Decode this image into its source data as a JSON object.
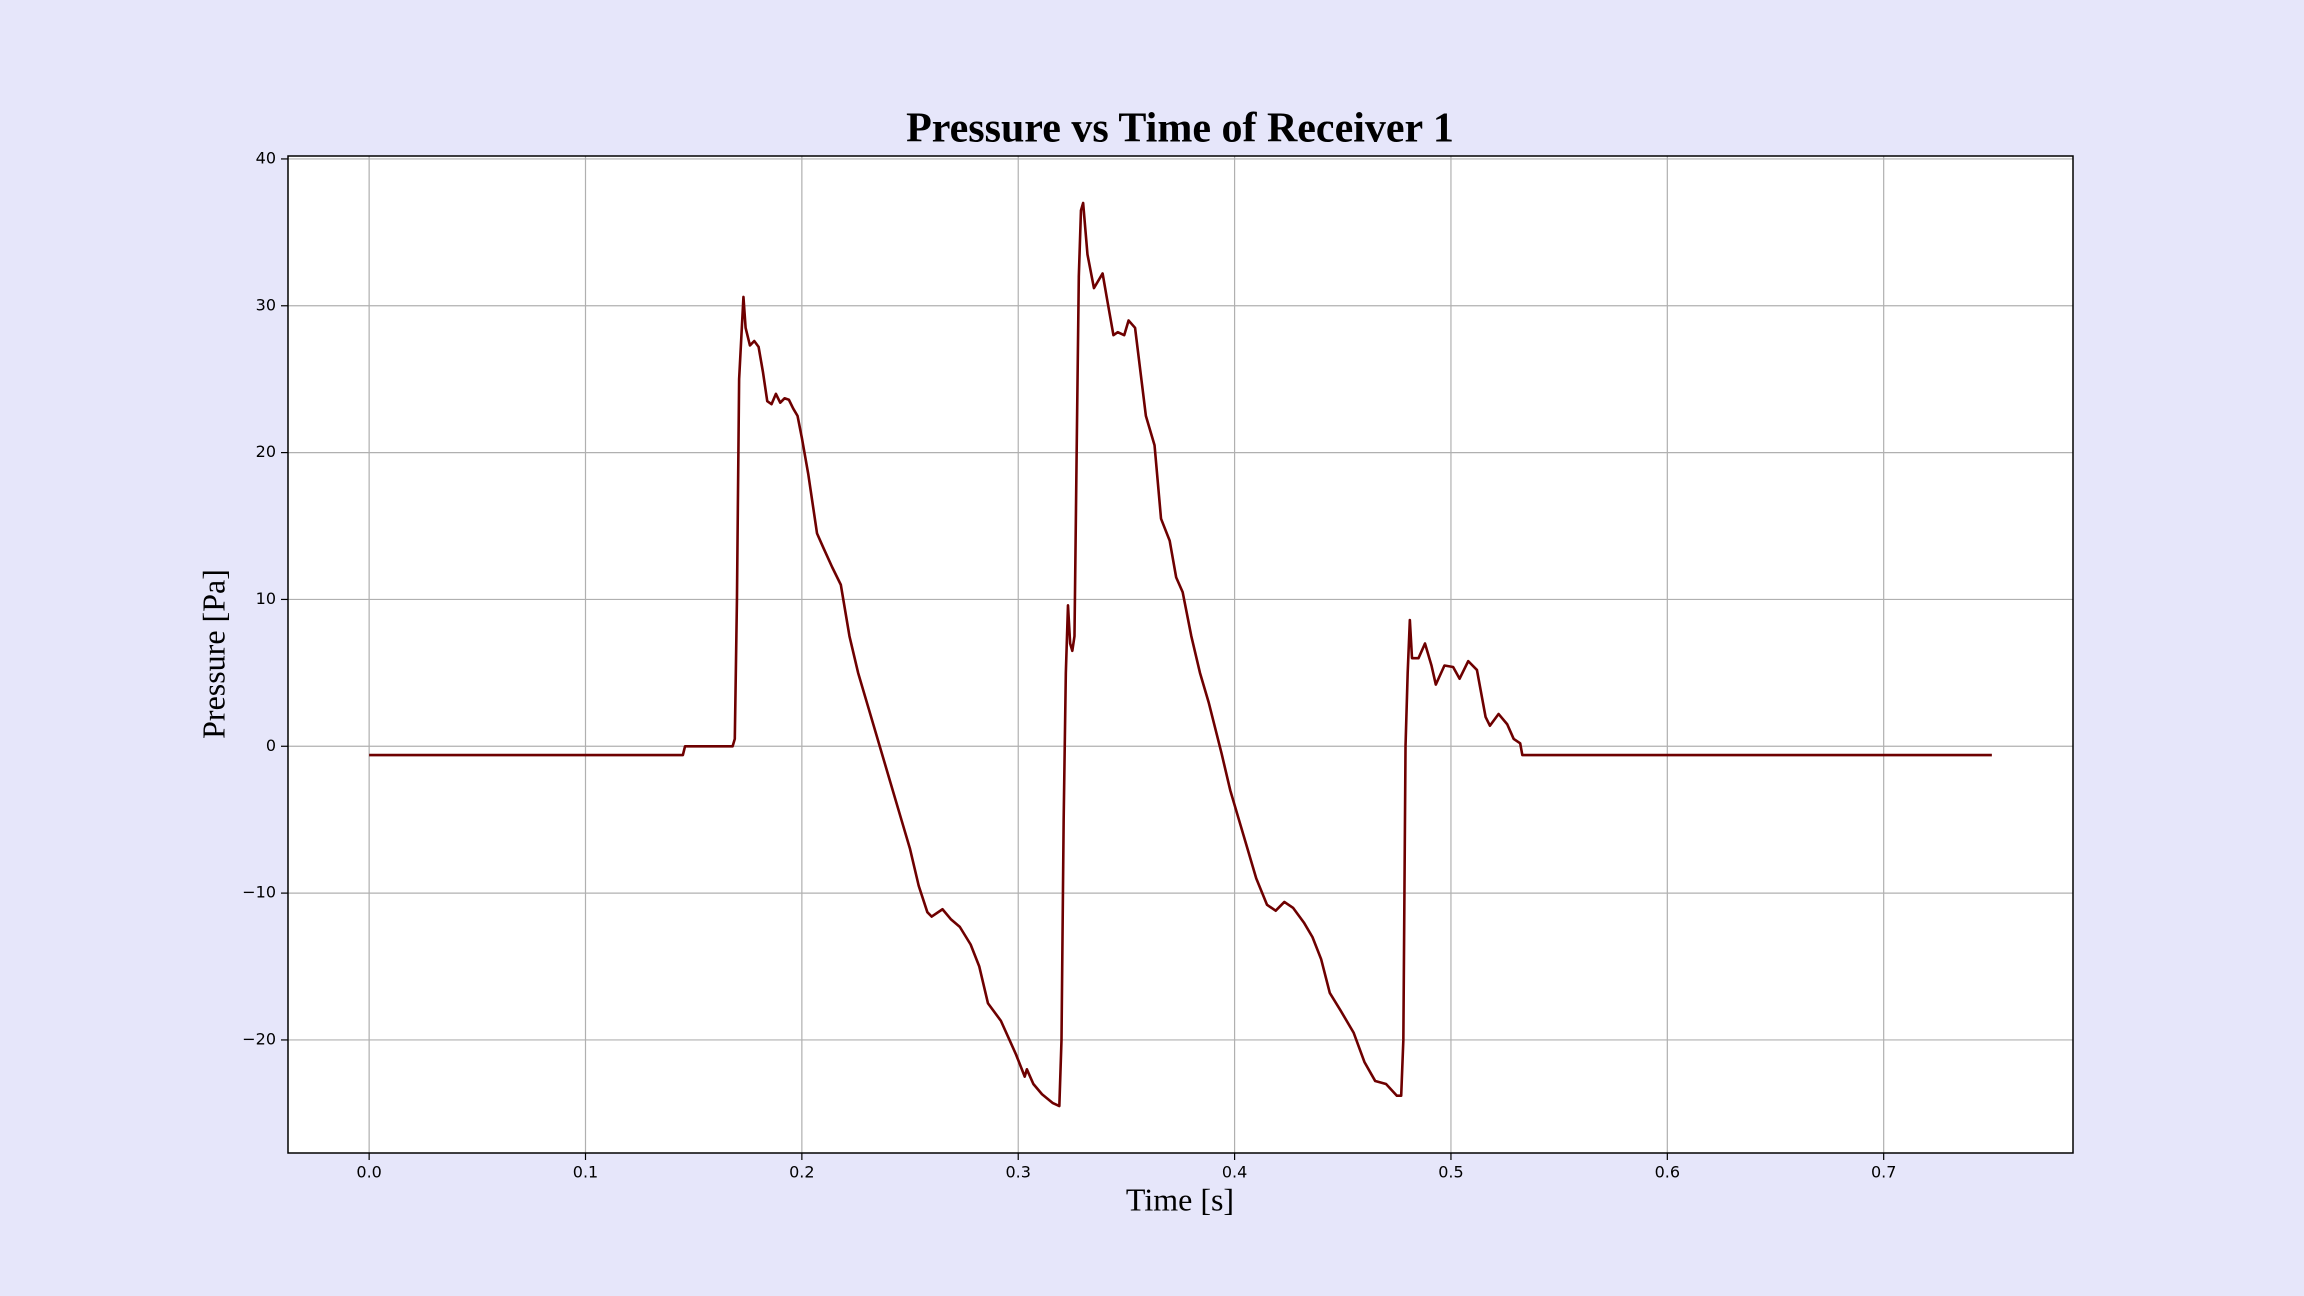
{
  "chart_data": {
    "type": "line",
    "title": "Pressure vs Time of Receiver 1",
    "x_label": "Time [s]",
    "y_label": "Pressure [Pa]",
    "color": "#6e0000",
    "grid": true,
    "x": [
      0.0,
      0.145,
      0.146,
      0.16,
      0.168,
      0.169,
      0.17,
      0.171,
      0.173,
      0.174,
      0.176,
      0.178,
      0.18,
      0.182,
      0.184,
      0.186,
      0.188,
      0.19,
      0.192,
      0.194,
      0.196,
      0.198,
      0.2,
      0.203,
      0.207,
      0.21,
      0.214,
      0.218,
      0.222,
      0.226,
      0.231,
      0.237,
      0.241,
      0.246,
      0.25,
      0.254,
      0.258,
      0.26,
      0.265,
      0.269,
      0.273,
      0.278,
      0.282,
      0.286,
      0.292,
      0.299,
      0.303,
      0.304,
      0.307,
      0.311,
      0.316,
      0.319,
      0.32,
      0.321,
      0.322,
      0.323,
      0.324,
      0.325,
      0.326,
      0.327,
      0.328,
      0.329,
      0.33,
      0.332,
      0.335,
      0.339,
      0.341,
      0.344,
      0.346,
      0.349,
      0.351,
      0.354,
      0.359,
      0.363,
      0.366,
      0.37,
      0.373,
      0.376,
      0.38,
      0.384,
      0.388,
      0.394,
      0.398,
      0.402,
      0.406,
      0.41,
      0.415,
      0.419,
      0.423,
      0.427,
      0.432,
      0.436,
      0.44,
      0.444,
      0.449,
      0.455,
      0.46,
      0.465,
      0.47,
      0.475,
      0.477,
      0.478,
      0.479,
      0.48,
      0.481,
      0.482,
      0.485,
      0.488,
      0.491,
      0.493,
      0.497,
      0.501,
      0.504,
      0.508,
      0.512,
      0.516,
      0.518,
      0.522,
      0.526,
      0.529,
      0.532,
      0.533,
      0.75
    ],
    "values": [
      -0.6,
      -0.6,
      0.0,
      0.0,
      0.0,
      0.5,
      10,
      25,
      30.6,
      28.5,
      27.3,
      27.6,
      27.2,
      25.5,
      23.5,
      23.3,
      24.0,
      23.4,
      23.7,
      23.6,
      23.0,
      22.5,
      21.0,
      18.5,
      14.5,
      13.5,
      12.2,
      11.0,
      7.5,
      5.0,
      2.5,
      -0.5,
      -2.5,
      -5.0,
      -7.0,
      -9.5,
      -11.3,
      -11.6,
      -11.1,
      -11.8,
      -12.3,
      -13.5,
      -15.0,
      -17.5,
      -18.7,
      -21.0,
      -22.5,
      -22.0,
      -23.0,
      -23.7,
      -24.3,
      -24.5,
      -20,
      -5,
      5,
      9.6,
      7.0,
      6.5,
      7.5,
      20,
      32,
      36.5,
      37.0,
      33.5,
      31.2,
      32.2,
      30.5,
      28.0,
      28.2,
      28.0,
      29.0,
      28.5,
      22.5,
      20.5,
      15.5,
      14.0,
      11.5,
      10.5,
      7.5,
      5.0,
      3.0,
      -0.5,
      -3.0,
      -5.0,
      -7.0,
      -9.0,
      -10.8,
      -11.2,
      -10.6,
      -11.0,
      -12.0,
      -13.0,
      -14.5,
      -16.8,
      -18.0,
      -19.5,
      -21.5,
      -22.8,
      -23.0,
      -23.8,
      -23.8,
      -20,
      0,
      5,
      8.6,
      6.0,
      6.0,
      7.0,
      5.5,
      4.2,
      5.5,
      5.4,
      4.6,
      5.8,
      5.2,
      2.0,
      1.4,
      2.2,
      1.5,
      0.5,
      0.2,
      -0.6,
      -0.6
    ],
    "xlim": [
      -0.0375,
      0.7875
    ],
    "ylim": [
      -27.7,
      40.2
    ],
    "xticks": [
      {
        "value": 0,
        "label": "0.0"
      },
      0.1,
      0.2,
      0.3,
      0.4,
      0.5,
      0.6,
      0.7
    ],
    "yticks": [
      {
        "value": -20,
        "label": "−20"
      },
      {
        "value": -10,
        "label": "−10"
      },
      0,
      10,
      20,
      30,
      40
    ]
  }
}
